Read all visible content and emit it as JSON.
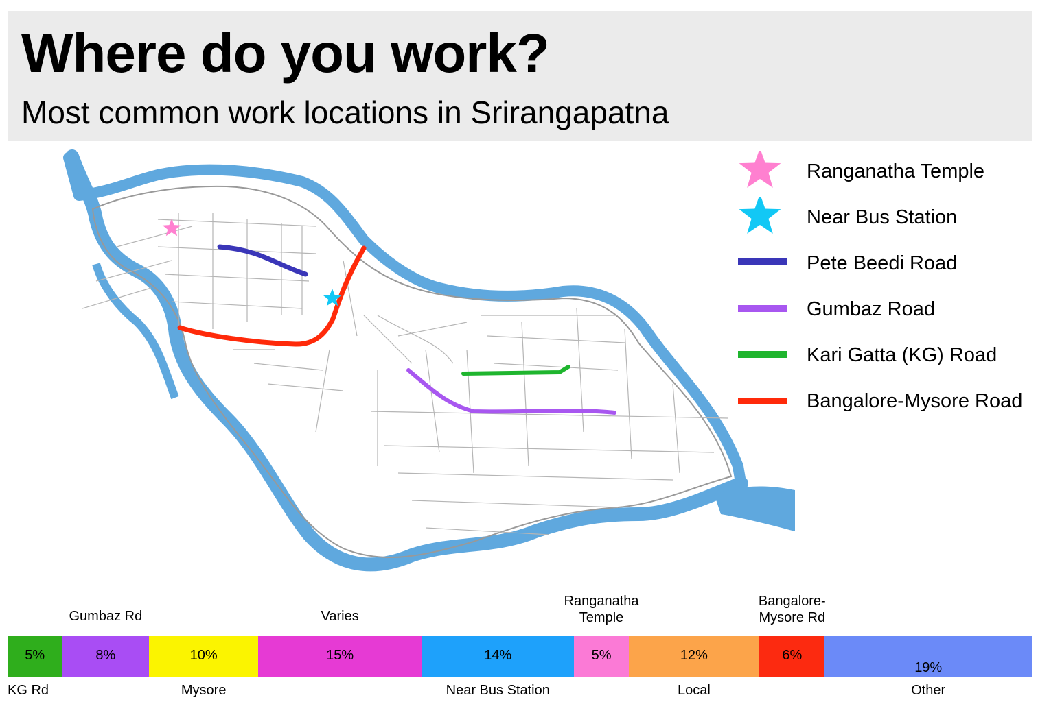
{
  "header": {
    "title": "Where do you work?",
    "subtitle": "Most common work locations in Srirangapatna"
  },
  "legend": [
    {
      "label": "Ranganatha Temple",
      "symbol": "star-icon",
      "color": "#ff80d0"
    },
    {
      "label": "Near Bus Station",
      "symbol": "star-icon",
      "color": "#12c8f5"
    },
    {
      "label": "Pete Beedi Road",
      "symbol": "line",
      "color": "#3a36b8"
    },
    {
      "label": "Gumbaz Road",
      "symbol": "line",
      "color": "#a857f0"
    },
    {
      "label": "Kari Gatta (KG) Road",
      "symbol": "line",
      "color": "#1fb52e"
    },
    {
      "label": "Bangalore-Mysore Road",
      "symbol": "line",
      "color": "#ff2a0a"
    }
  ],
  "map": {
    "water_color": "#5fa8de",
    "street_color": "#b5b5b5"
  },
  "chart_data": {
    "type": "bar",
    "layout": "stacked-horizontal",
    "categories": [
      "KG Rd",
      "Gumbaz Rd",
      "Mysore",
      "Varies",
      "Near Bus Station",
      "Ranganatha Temple",
      "Local",
      "Bangalore-Mysore Rd",
      "Other"
    ],
    "segments": [
      {
        "label": "KG Rd",
        "value": 5,
        "display": "5%",
        "color": "#2fae1c",
        "label_pos": "below"
      },
      {
        "label": "Gumbaz Rd",
        "value": 8,
        "display": "8%",
        "color": "#a94df4",
        "label_pos": "above"
      },
      {
        "label": "Mysore",
        "value": 10,
        "display": "10%",
        "color": "#fbf400",
        "label_pos": "below"
      },
      {
        "label": "Varies",
        "value": 15,
        "display": "15%",
        "color": "#e63ad4",
        "label_pos": "above"
      },
      {
        "label": "Near Bus Station",
        "value": 14,
        "display": "14%",
        "color": "#1ea1fb",
        "label_pos": "below"
      },
      {
        "label": "Ranganatha\nTemple",
        "value": 5,
        "display": "5%",
        "color": "#fb7ad6",
        "label_pos": "above"
      },
      {
        "label": "Local",
        "value": 12,
        "display": "12%",
        "color": "#fca44a",
        "label_pos": "below"
      },
      {
        "label": "Bangalore-\nMysore Rd",
        "value": 6,
        "display": "6%",
        "color": "#fc2a10",
        "label_pos": "above"
      },
      {
        "label": "Other",
        "value": 19,
        "display": "19%",
        "color": "#6b8af8",
        "label_pos": "below"
      }
    ]
  }
}
